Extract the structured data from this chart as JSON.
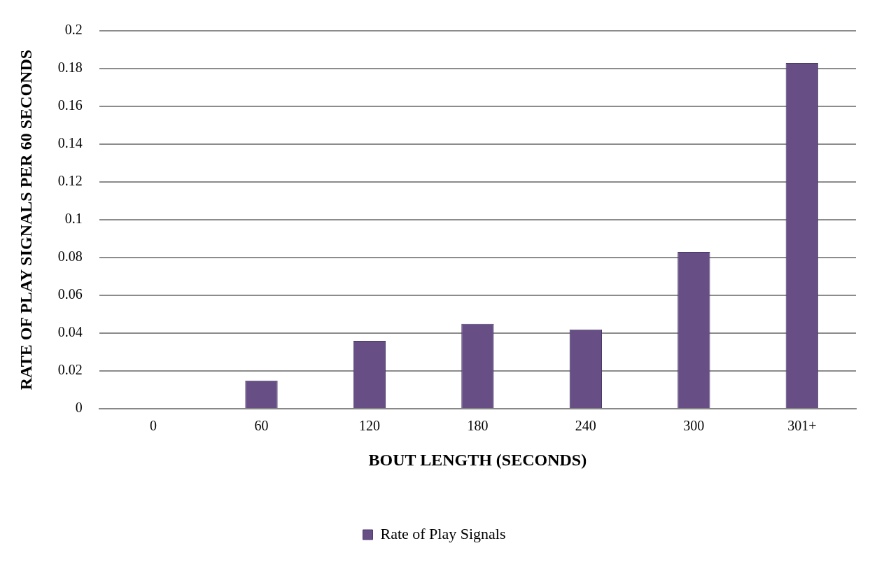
{
  "chart_data": {
    "type": "bar",
    "xlabel": "BOUT LENGTH (SECONDS)",
    "ylabel": "RATE OF PLAY SIGNALS PER 60 SECONDS",
    "categories": [
      "0",
      "60",
      "120",
      "180",
      "240",
      "300",
      "301+"
    ],
    "series": [
      {
        "name": "Rate of Play Signals",
        "color": "#674f86",
        "values": [
          0,
          0.015,
          0.036,
          0.045,
          0.042,
          0.083,
          0.183
        ]
      }
    ],
    "ylim": [
      0,
      0.2
    ],
    "yticks": [
      0,
      0.02,
      0.04,
      0.06,
      0.08,
      0.1,
      0.12,
      0.14,
      0.16,
      0.18,
      0.2
    ],
    "grid": "y",
    "legend": "bottom"
  }
}
